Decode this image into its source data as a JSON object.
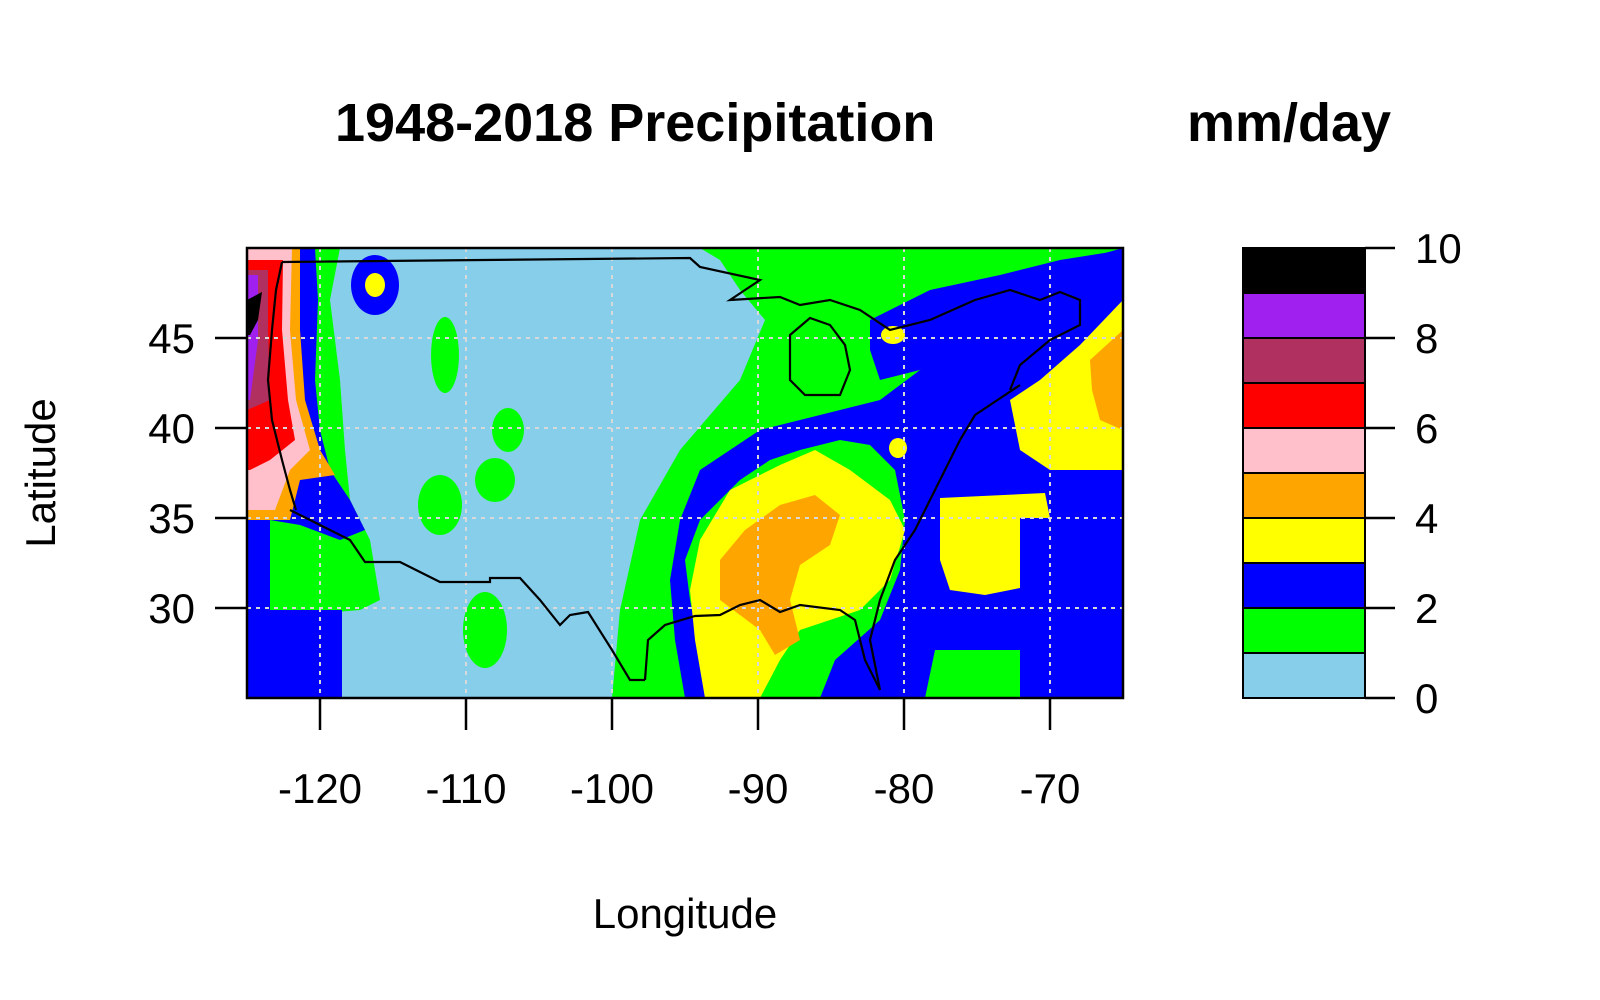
{
  "figure": {
    "title": "1948-2018 Precipitation",
    "legend_title": "mm/day",
    "xlabel": "Longitude",
    "ylabel": "Latitude"
  },
  "chart_data": {
    "type": "heatmap",
    "subtype": "filled-contour map",
    "title": "1948-2018 Precipitation",
    "units": "mm/day",
    "xlabel": "Longitude",
    "ylabel": "Latitude",
    "xlim": [
      -125,
      -65
    ],
    "ylim": [
      25,
      50
    ],
    "x_ticks": [
      -120,
      -110,
      -100,
      -90,
      -80,
      -70
    ],
    "x_tick_labels": [
      "-120",
      "-110",
      "-100",
      "-90",
      "-80",
      "-70"
    ],
    "y_ticks": [
      30,
      35,
      40,
      45
    ],
    "y_tick_labels": [
      "30",
      "35",
      "40",
      "45"
    ],
    "grid": "on (dotted, light gray)",
    "color_scale": {
      "ticks": [
        0,
        2,
        4,
        6,
        8,
        10
      ],
      "tick_labels": [
        "0",
        "2",
        "4",
        "6",
        "8",
        "10"
      ],
      "bins": [
        {
          "min": 0,
          "max": 1,
          "color": "#87CEEB"
        },
        {
          "min": 1,
          "max": 2,
          "color": "#00FF00"
        },
        {
          "min": 2,
          "max": 3,
          "color": "#0000FF"
        },
        {
          "min": 3,
          "max": 4,
          "color": "#FFFF00"
        },
        {
          "min": 4,
          "max": 5,
          "color": "#FFA500"
        },
        {
          "min": 5,
          "max": 6,
          "color": "#FFC0CB"
        },
        {
          "min": 6,
          "max": 7,
          "color": "#FF0000"
        },
        {
          "min": 7,
          "max": 8,
          "color": "#B03060"
        },
        {
          "min": 8,
          "max": 9,
          "color": "#A020F0"
        },
        {
          "min": 9,
          "max": 10,
          "color": "#000000"
        }
      ]
    },
    "regions": [
      {
        "level": 2,
        "lon_range": [
          -125,
          -118
        ],
        "lat_range": [
          25,
          30
        ]
      },
      {
        "level": 0,
        "lon_range": [
          -118,
          -97
        ],
        "lat_range": [
          25,
          50
        ]
      },
      {
        "level": 1,
        "lon_range": [
          -97,
          -93
        ],
        "lat_range": [
          25,
          38
        ]
      },
      {
        "level": 2,
        "lon_range": [
          -93,
          -78
        ],
        "lat_range": [
          25,
          38
        ]
      },
      {
        "level": 3,
        "lon_range": [
          -92,
          -83
        ],
        "lat_range": [
          28,
          38
        ]
      },
      {
        "level": 4,
        "lon_range": [
          -89,
          -86
        ],
        "lat_range": [
          29,
          36
        ]
      },
      {
        "level": 1,
        "lon_range": [
          -96,
          -75
        ],
        "lat_range": [
          42,
          50
        ]
      },
      {
        "level": 3,
        "lon_range": [
          -75,
          -65
        ],
        "lat_range": [
          38,
          47
        ]
      },
      {
        "level": 4,
        "lon_range": [
          -67,
          -65
        ],
        "lat_range": [
          40,
          44
        ]
      },
      {
        "level": 2,
        "lon_range": [
          -75,
          -65
        ],
        "lat_range": [
          25,
          38
        ]
      },
      {
        "level": 6,
        "lon_range": [
          -125,
          -121
        ],
        "lat_range": [
          36,
          48
        ]
      }
    ]
  }
}
